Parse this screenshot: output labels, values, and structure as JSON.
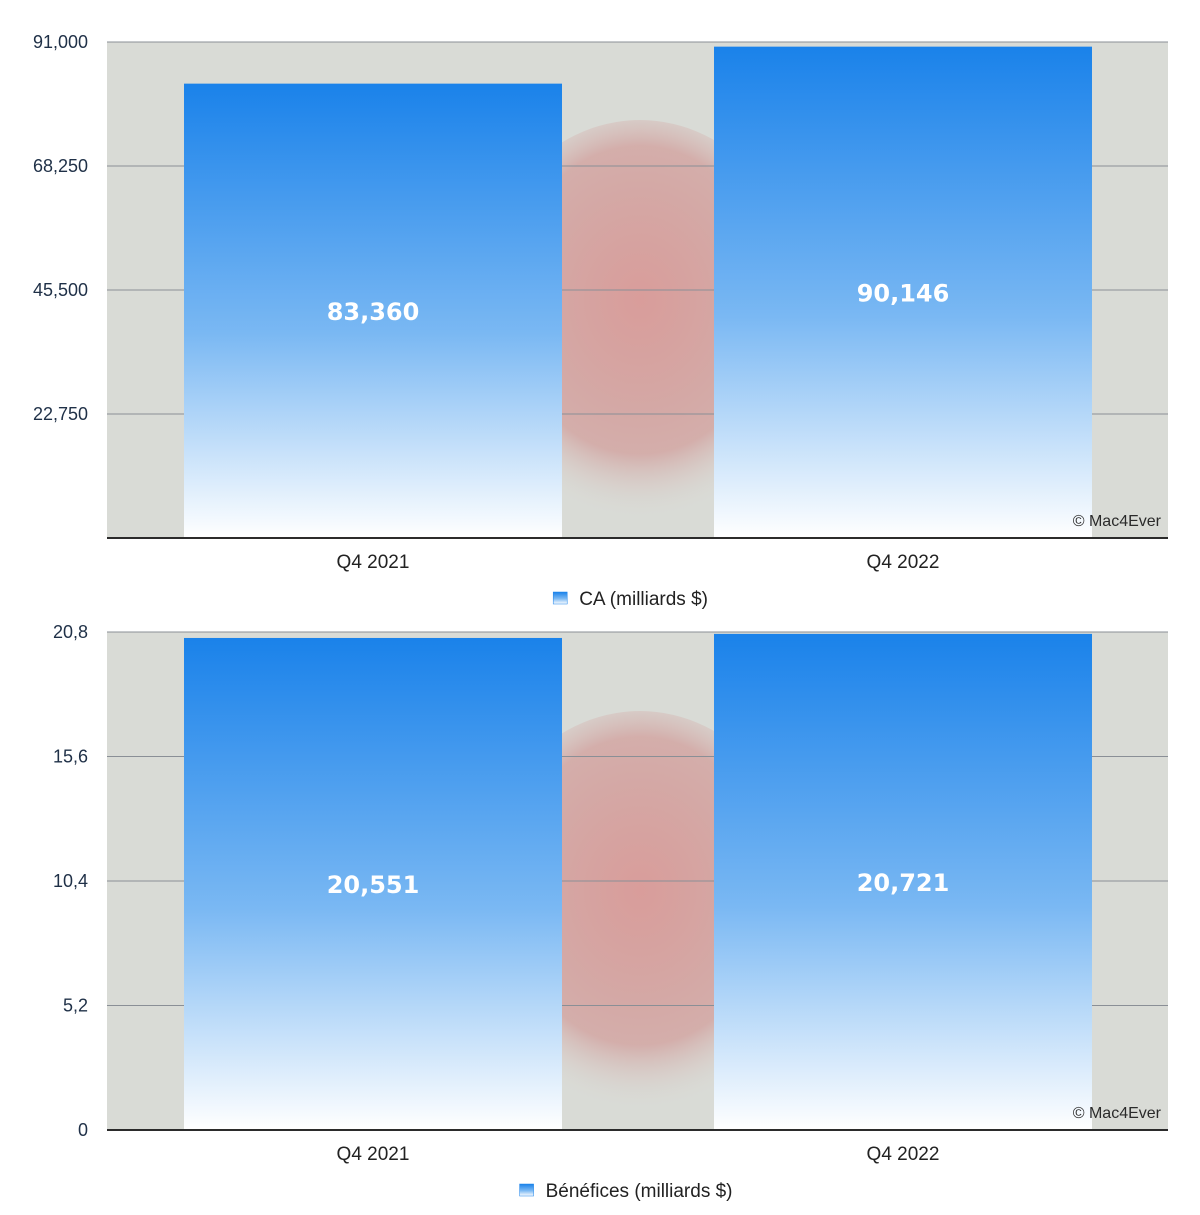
{
  "charts": [
    {
      "chart_data": {
        "type": "bar",
        "categories": [
          "Q4 2021",
          "Q4 2022"
        ],
        "series": [
          {
            "name": "CA (milliards $)",
            "values": [
              83360,
              90146
            ]
          }
        ],
        "data_labels": [
          "83,360",
          "90,146"
        ],
        "ylim": [
          0,
          91000
        ],
        "yticks": [
          22750,
          45500,
          68250,
          91000
        ],
        "ytick_labels": [
          "22,750",
          "45,500",
          "68,250",
          "91,000"
        ],
        "legend": {
          "label": "CA (milliards $)",
          "position": "bottom-center"
        },
        "grid": true,
        "credit": "© Mac4Ever",
        "colors": {
          "bar_top": "#1a82ea",
          "bar_bottom": "#ffffff",
          "plot_bg": "#d9dbd6"
        }
      }
    },
    {
      "chart_data": {
        "type": "bar",
        "categories": [
          "Q4 2021",
          "Q4 2022"
        ],
        "series": [
          {
            "name": "Bénéfices (milliards $)",
            "values": [
              20.551,
              20.721
            ]
          }
        ],
        "data_labels": [
          "20,551",
          "20,721"
        ],
        "ylim": [
          0,
          20.8
        ],
        "yticks": [
          0,
          5.2,
          10.4,
          15.6,
          20.8
        ],
        "ytick_labels": [
          "0",
          "5,2",
          "10,4",
          "15,6",
          "20,8"
        ],
        "legend": {
          "label": "Bénéfices (milliards $)",
          "position": "bottom-center"
        },
        "grid": true,
        "credit": "© Mac4Ever",
        "colors": {
          "bar_top": "#1a82ea",
          "bar_bottom": "#ffffff",
          "plot_bg": "#d9dbd6"
        }
      }
    }
  ]
}
